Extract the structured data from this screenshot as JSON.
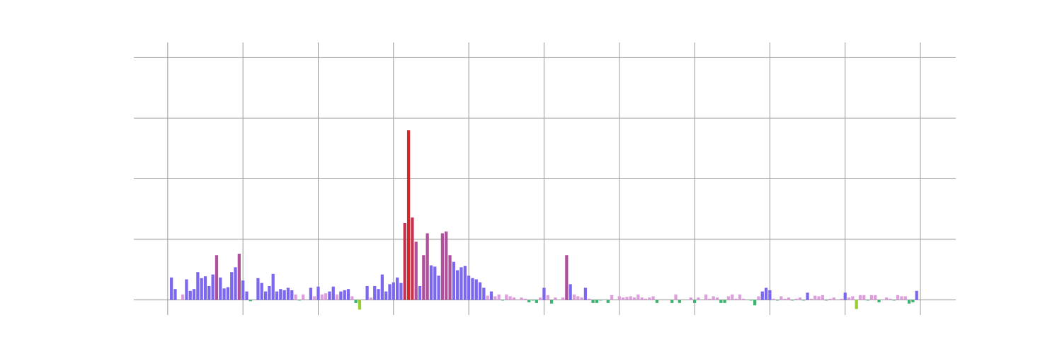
{
  "chart_data": {
    "type": "bar",
    "x": [
      0.05,
      0.1,
      0.15,
      0.2,
      0.25,
      0.3,
      0.35,
      0.4,
      0.45,
      0.5,
      0.55,
      0.6,
      0.65,
      0.7,
      0.75,
      0.8,
      0.85,
      0.9,
      0.95,
      1,
      1.05,
      1.1,
      1.15,
      1.2,
      1.25,
      1.3,
      1.35,
      1.4,
      1.45,
      1.5,
      1.55,
      1.6,
      1.65,
      1.7,
      1.75,
      1.8,
      1.85,
      1.9,
      1.95,
      2,
      2.05,
      2.1,
      2.15,
      2.2,
      2.25,
      2.3,
      2.35,
      2.4,
      2.45,
      2.5,
      2.55,
      2.6,
      2.65,
      2.7,
      2.75,
      2.8,
      2.85,
      2.9,
      2.95,
      3,
      3.05,
      3.1,
      3.15,
      3.2,
      3.25,
      3.3,
      3.35,
      3.4,
      3.45,
      3.5,
      3.55,
      3.6,
      3.65,
      3.7,
      3.75,
      3.8,
      3.85,
      3.9,
      3.95,
      4,
      4.05,
      4.1,
      4.15,
      4.2,
      4.25,
      4.3,
      4.35,
      4.4,
      4.45,
      4.5,
      4.55,
      4.6,
      4.65,
      4.7,
      4.75,
      4.8,
      4.85,
      4.9,
      4.95,
      5,
      5.05,
      5.1,
      5.15,
      5.2,
      5.25,
      5.3,
      5.35,
      5.4,
      5.45,
      5.5,
      5.55,
      5.6,
      5.65,
      5.7,
      5.75,
      5.8,
      5.85,
      5.9,
      5.95,
      6,
      6.05,
      6.1,
      6.15,
      6.2,
      6.25,
      6.3,
      6.35,
      6.4,
      6.45,
      6.5,
      6.55,
      6.6,
      6.65,
      6.7,
      6.75,
      6.8,
      6.85,
      6.9,
      6.95,
      7,
      7.05,
      7.1,
      7.15,
      7.2,
      7.25,
      7.3,
      7.35,
      7.4,
      7.45,
      7.5,
      7.55,
      7.6,
      7.65,
      7.7,
      7.75,
      7.8,
      7.85,
      7.9,
      7.95,
      8,
      8.05,
      8.1,
      8.15,
      8.2,
      8.25,
      8.3,
      8.35,
      8.4,
      8.45,
      8.5,
      8.55,
      8.6,
      8.65,
      8.7,
      8.75,
      8.8,
      8.85,
      8.9,
      8.95,
      9,
      9.05,
      9.1,
      9.15,
      9.2,
      9.25,
      9.3,
      9.35,
      9.4,
      9.45,
      9.5,
      9.55,
      9.6,
      9.65,
      9.7,
      9.75,
      9.8,
      9.85,
      9.9,
      9.95
    ],
    "values": [
      0.37,
      0.18,
      0,
      0.09,
      0.34,
      0.15,
      0.18,
      0.46,
      0.36,
      0.39,
      0.23,
      0.42,
      0.74,
      0.37,
      0.19,
      0.21,
      0.46,
      0.54,
      0.76,
      0.32,
      0.14,
      -0.02,
      0,
      0.36,
      0.28,
      0.14,
      0.23,
      0.43,
      0.14,
      0.18,
      0.16,
      0.2,
      0.16,
      0.09,
      -0.01,
      0.09,
      0,
      0.2,
      0.06,
      0.22,
      0.09,
      0.11,
      0.14,
      0.22,
      0.09,
      0.14,
      0.16,
      0.18,
      0.06,
      -0.05,
      -0.16,
      0,
      0.23,
      0.04,
      0.23,
      0.18,
      0.42,
      0.14,
      0.26,
      0.29,
      0.37,
      0.28,
      1.27,
      2.8,
      1.36,
      0.96,
      0.23,
      0.74,
      1.1,
      0.57,
      0.55,
      0.4,
      1.1,
      1.13,
      0.74,
      0.63,
      0.49,
      0.54,
      0.56,
      0.4,
      0.36,
      0.34,
      0.29,
      0.2,
      0.07,
      0.14,
      0.06,
      0.09,
      -0.01,
      0.09,
      0.06,
      0.04,
      0,
      0.04,
      0.02,
      -0.04,
      -0.01,
      -0.05,
      0.04,
      0.2,
      0.08,
      -0.06,
      0.04,
      0,
      0.04,
      0.74,
      0.26,
      0.09,
      0.06,
      0.04,
      0.2,
      0.02,
      -0.05,
      -0.05,
      -0.01,
      0,
      -0.05,
      0.08,
      0,
      0.06,
      0.04,
      0.05,
      0.06,
      0.04,
      0.09,
      0.04,
      0.02,
      0.04,
      0.06,
      -0.05,
      0,
      0,
      0,
      -0.05,
      0.09,
      -0.05,
      0,
      0,
      0.04,
      -0.05,
      0.04,
      0,
      0.09,
      0.02,
      0.06,
      0.04,
      -0.05,
      -0.05,
      0.06,
      0.09,
      0.02,
      0.09,
      0.02,
      0,
      -0.01,
      -0.09,
      0.06,
      0.14,
      0.2,
      0.16,
      0.02,
      -0.01,
      0.06,
      0.02,
      0.04,
      -0.01,
      0.02,
      0.04,
      -0.01,
      0.12,
      0.02,
      0.07,
      0.06,
      0.08,
      -0.01,
      0.02,
      0.04,
      0,
      0.02,
      0.12,
      0.04,
      0.06,
      -0.15,
      0.08,
      0.08,
      -0.01,
      0.08,
      0.08,
      -0.04,
      0,
      0.04,
      0.02,
      -0.01,
      0.08,
      0.06,
      0.06,
      -0.06,
      -0.04,
      0.15
    ],
    "colors": [
      "#7b68ee",
      "#7b68ee",
      "#dda0dd",
      "#dda0dd",
      "#7b68ee",
      "#7b68ee",
      "#7b68ee",
      "#7b68ee",
      "#7b68ee",
      "#7b68ee",
      "#7b68ee",
      "#7b68ee",
      "#b0509a",
      "#7b68ee",
      "#7b68ee",
      "#7b68ee",
      "#7b68ee",
      "#7b68ee",
      "#b0509a",
      "#7b68ee",
      "#7b68ee",
      "#3cb371",
      "#dda0dd",
      "#7b68ee",
      "#7b68ee",
      "#7b68ee",
      "#7b68ee",
      "#7b68ee",
      "#7b68ee",
      "#7b68ee",
      "#7b68ee",
      "#7b68ee",
      "#7b68ee",
      "#dda0dd",
      "#3cb371",
      "#dda0dd",
      "#dda0dd",
      "#7b68ee",
      "#dda0dd",
      "#7b68ee",
      "#dda0dd",
      "#dda0dd",
      "#7b68ee",
      "#7b68ee",
      "#dda0dd",
      "#7b68ee",
      "#7b68ee",
      "#7b68ee",
      "#dda0dd",
      "#3cb371",
      "#9acd32",
      "#dda0dd",
      "#7b68ee",
      "#dda0dd",
      "#7b68ee",
      "#7b68ee",
      "#7b68ee",
      "#7b68ee",
      "#7b68ee",
      "#7b68ee",
      "#7b68ee",
      "#7b68ee",
      "#c83250",
      "#d62728",
      "#c83250",
      "#b0509a",
      "#7b68ee",
      "#b0509a",
      "#b0509a",
      "#7b68ee",
      "#7b68ee",
      "#7b68ee",
      "#b0509a",
      "#b0509a",
      "#b0509a",
      "#7b68ee",
      "#7b68ee",
      "#7b68ee",
      "#7b68ee",
      "#7b68ee",
      "#7b68ee",
      "#7b68ee",
      "#7b68ee",
      "#7b68ee",
      "#dda0dd",
      "#7b68ee",
      "#dda0dd",
      "#dda0dd",
      "#3cb371",
      "#dda0dd",
      "#dda0dd",
      "#dda0dd",
      "#dda0dd",
      "#dda0dd",
      "#dda0dd",
      "#3cb371",
      "#3cb371",
      "#3cb371",
      "#dda0dd",
      "#7b68ee",
      "#dda0dd",
      "#3cb371",
      "#dda0dd",
      "#dda0dd",
      "#dda0dd",
      "#b0509a",
      "#7b68ee",
      "#dda0dd",
      "#dda0dd",
      "#dda0dd",
      "#7b68ee",
      "#dda0dd",
      "#3cb371",
      "#3cb371",
      "#3cb371",
      "#dda0dd",
      "#3cb371",
      "#dda0dd",
      "#dda0dd",
      "#dda0dd",
      "#dda0dd",
      "#dda0dd",
      "#dda0dd",
      "#dda0dd",
      "#dda0dd",
      "#dda0dd",
      "#dda0dd",
      "#dda0dd",
      "#dda0dd",
      "#3cb371",
      "#dda0dd",
      "#dda0dd",
      "#dda0dd",
      "#3cb371",
      "#dda0dd",
      "#3cb371",
      "#dda0dd",
      "#dda0dd",
      "#dda0dd",
      "#3cb371",
      "#dda0dd",
      "#dda0dd",
      "#dda0dd",
      "#dda0dd",
      "#dda0dd",
      "#dda0dd",
      "#3cb371",
      "#3cb371",
      "#dda0dd",
      "#dda0dd",
      "#dda0dd",
      "#dda0dd",
      "#dda0dd",
      "#dda0dd",
      "#3cb371",
      "#3cb371",
      "#dda0dd",
      "#7b68ee",
      "#7b68ee",
      "#7b68ee",
      "#dda0dd",
      "#3cb371",
      "#dda0dd",
      "#dda0dd",
      "#dda0dd",
      "#3cb371",
      "#dda0dd",
      "#dda0dd",
      "#3cb371",
      "#7b68ee",
      "#dda0dd",
      "#dda0dd",
      "#dda0dd",
      "#dda0dd",
      "#3cb371",
      "#dda0dd",
      "#dda0dd",
      "#dda0dd",
      "#dda0dd",
      "#7b68ee",
      "#dda0dd",
      "#dda0dd",
      "#9acd32",
      "#dda0dd",
      "#dda0dd",
      "#3cb371",
      "#dda0dd",
      "#dda0dd",
      "#3cb371",
      "#dda0dd",
      "#dda0dd",
      "#dda0dd",
      "#3cb371",
      "#dda0dd",
      "#dda0dd",
      "#dda0dd",
      "#3cb371",
      "#3cb371",
      "#7b68ee"
    ],
    "xlim": [
      -0.45,
      10.47
    ],
    "xticks": [
      0,
      1,
      2,
      3,
      4,
      5,
      6,
      7,
      8,
      9,
      10
    ],
    "ylim": [
      -0.25,
      4.25
    ],
    "yticks": [
      0,
      1,
      2,
      3,
      4
    ],
    "grid": true
  }
}
